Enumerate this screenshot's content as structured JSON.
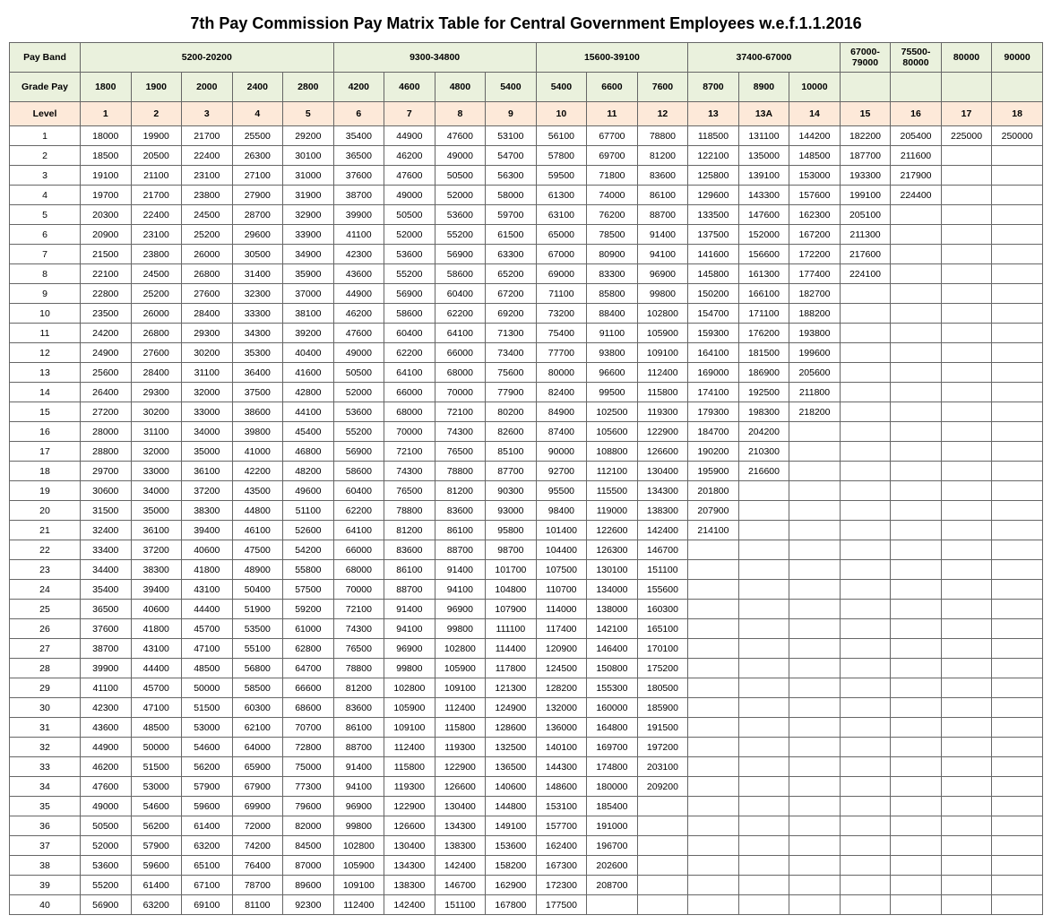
{
  "title": "7th Pay Commission Pay Matrix Table for Central Government Employees w.e.f.1.1.2016",
  "colors": {
    "payband_bg": "#eaf1dd",
    "gradepay_bg": "#eaf1dd",
    "level_bg": "#fde9d9",
    "border": "#666666",
    "background": "#ffffff",
    "text": "#000000"
  },
  "typography": {
    "title_fontsize": 18,
    "title_weight": "bold",
    "cell_fontsize": 10.5,
    "font_family": "Arial"
  },
  "labels": {
    "payband": "Pay Band",
    "gradepay": "Grade Pay",
    "level": "Level"
  },
  "paybands": [
    {
      "label": "5200-20200",
      "span": 5
    },
    {
      "label": "9300-34800",
      "span": 4
    },
    {
      "label": "15600-39100",
      "span": 3
    },
    {
      "label": "37400-67000",
      "span": 3
    },
    {
      "label": "67000-79000",
      "span": 1
    },
    {
      "label": "75500-80000",
      "span": 1
    },
    {
      "label": "80000",
      "span": 1
    },
    {
      "label": "90000",
      "span": 1
    }
  ],
  "gradepay": [
    "1800",
    "1900",
    "2000",
    "2400",
    "2800",
    "4200",
    "4600",
    "4800",
    "5400",
    "5400",
    "6600",
    "7600",
    "8700",
    "8900",
    "10000",
    "",
    "",
    "",
    ""
  ],
  "levels": [
    "1",
    "2",
    "3",
    "4",
    "5",
    "6",
    "7",
    "8",
    "9",
    "10",
    "11",
    "12",
    "13",
    "13A",
    "14",
    "15",
    "16",
    "17",
    "18"
  ],
  "rows": [
    {
      "idx": "1",
      "v": [
        "18000",
        "19900",
        "21700",
        "25500",
        "29200",
        "35400",
        "44900",
        "47600",
        "53100",
        "56100",
        "67700",
        "78800",
        "118500",
        "131100",
        "144200",
        "182200",
        "205400",
        "225000",
        "250000"
      ]
    },
    {
      "idx": "2",
      "v": [
        "18500",
        "20500",
        "22400",
        "26300",
        "30100",
        "36500",
        "46200",
        "49000",
        "54700",
        "57800",
        "69700",
        "81200",
        "122100",
        "135000",
        "148500",
        "187700",
        "211600",
        "",
        ""
      ]
    },
    {
      "idx": "3",
      "v": [
        "19100",
        "21100",
        "23100",
        "27100",
        "31000",
        "37600",
        "47600",
        "50500",
        "56300",
        "59500",
        "71800",
        "83600",
        "125800",
        "139100",
        "153000",
        "193300",
        "217900",
        "",
        ""
      ]
    },
    {
      "idx": "4",
      "v": [
        "19700",
        "21700",
        "23800",
        "27900",
        "31900",
        "38700",
        "49000",
        "52000",
        "58000",
        "61300",
        "74000",
        "86100",
        "129600",
        "143300",
        "157600",
        "199100",
        "224400",
        "",
        ""
      ]
    },
    {
      "idx": "5",
      "v": [
        "20300",
        "22400",
        "24500",
        "28700",
        "32900",
        "39900",
        "50500",
        "53600",
        "59700",
        "63100",
        "76200",
        "88700",
        "133500",
        "147600",
        "162300",
        "205100",
        "",
        "",
        ""
      ]
    },
    {
      "idx": "6",
      "v": [
        "20900",
        "23100",
        "25200",
        "29600",
        "33900",
        "41100",
        "52000",
        "55200",
        "61500",
        "65000",
        "78500",
        "91400",
        "137500",
        "152000",
        "167200",
        "211300",
        "",
        "",
        ""
      ]
    },
    {
      "idx": "7",
      "v": [
        "21500",
        "23800",
        "26000",
        "30500",
        "34900",
        "42300",
        "53600",
        "56900",
        "63300",
        "67000",
        "80900",
        "94100",
        "141600",
        "156600",
        "172200",
        "217600",
        "",
        "",
        ""
      ]
    },
    {
      "idx": "8",
      "v": [
        "22100",
        "24500",
        "26800",
        "31400",
        "35900",
        "43600",
        "55200",
        "58600",
        "65200",
        "69000",
        "83300",
        "96900",
        "145800",
        "161300",
        "177400",
        "224100",
        "",
        "",
        ""
      ]
    },
    {
      "idx": "9",
      "v": [
        "22800",
        "25200",
        "27600",
        "32300",
        "37000",
        "44900",
        "56900",
        "60400",
        "67200",
        "71100",
        "85800",
        "99800",
        "150200",
        "166100",
        "182700",
        "",
        "",
        "",
        ""
      ]
    },
    {
      "idx": "10",
      "v": [
        "23500",
        "26000",
        "28400",
        "33300",
        "38100",
        "46200",
        "58600",
        "62200",
        "69200",
        "73200",
        "88400",
        "102800",
        "154700",
        "171100",
        "188200",
        "",
        "",
        "",
        ""
      ]
    },
    {
      "idx": "11",
      "v": [
        "24200",
        "26800",
        "29300",
        "34300",
        "39200",
        "47600",
        "60400",
        "64100",
        "71300",
        "75400",
        "91100",
        "105900",
        "159300",
        "176200",
        "193800",
        "",
        "",
        "",
        ""
      ]
    },
    {
      "idx": "12",
      "v": [
        "24900",
        "27600",
        "30200",
        "35300",
        "40400",
        "49000",
        "62200",
        "66000",
        "73400",
        "77700",
        "93800",
        "109100",
        "164100",
        "181500",
        "199600",
        "",
        "",
        "",
        ""
      ]
    },
    {
      "idx": "13",
      "v": [
        "25600",
        "28400",
        "31100",
        "36400",
        "41600",
        "50500",
        "64100",
        "68000",
        "75600",
        "80000",
        "96600",
        "112400",
        "169000",
        "186900",
        "205600",
        "",
        "",
        "",
        ""
      ]
    },
    {
      "idx": "14",
      "v": [
        "26400",
        "29300",
        "32000",
        "37500",
        "42800",
        "52000",
        "66000",
        "70000",
        "77900",
        "82400",
        "99500",
        "115800",
        "174100",
        "192500",
        "211800",
        "",
        "",
        "",
        ""
      ]
    },
    {
      "idx": "15",
      "v": [
        "27200",
        "30200",
        "33000",
        "38600",
        "44100",
        "53600",
        "68000",
        "72100",
        "80200",
        "84900",
        "102500",
        "119300",
        "179300",
        "198300",
        "218200",
        "",
        "",
        "",
        ""
      ]
    },
    {
      "idx": "16",
      "v": [
        "28000",
        "31100",
        "34000",
        "39800",
        "45400",
        "55200",
        "70000",
        "74300",
        "82600",
        "87400",
        "105600",
        "122900",
        "184700",
        "204200",
        "",
        "",
        "",
        "",
        ""
      ]
    },
    {
      "idx": "17",
      "v": [
        "28800",
        "32000",
        "35000",
        "41000",
        "46800",
        "56900",
        "72100",
        "76500",
        "85100",
        "90000",
        "108800",
        "126600",
        "190200",
        "210300",
        "",
        "",
        "",
        "",
        ""
      ]
    },
    {
      "idx": "18",
      "v": [
        "29700",
        "33000",
        "36100",
        "42200",
        "48200",
        "58600",
        "74300",
        "78800",
        "87700",
        "92700",
        "112100",
        "130400",
        "195900",
        "216600",
        "",
        "",
        "",
        "",
        ""
      ]
    },
    {
      "idx": "19",
      "v": [
        "30600",
        "34000",
        "37200",
        "43500",
        "49600",
        "60400",
        "76500",
        "81200",
        "90300",
        "95500",
        "115500",
        "134300",
        "201800",
        "",
        "",
        "",
        "",
        "",
        ""
      ]
    },
    {
      "idx": "20",
      "v": [
        "31500",
        "35000",
        "38300",
        "44800",
        "51100",
        "62200",
        "78800",
        "83600",
        "93000",
        "98400",
        "119000",
        "138300",
        "207900",
        "",
        "",
        "",
        "",
        "",
        ""
      ]
    },
    {
      "idx": "21",
      "v": [
        "32400",
        "36100",
        "39400",
        "46100",
        "52600",
        "64100",
        "81200",
        "86100",
        "95800",
        "101400",
        "122600",
        "142400",
        "214100",
        "",
        "",
        "",
        "",
        "",
        ""
      ]
    },
    {
      "idx": "22",
      "v": [
        "33400",
        "37200",
        "40600",
        "47500",
        "54200",
        "66000",
        "83600",
        "88700",
        "98700",
        "104400",
        "126300",
        "146700",
        "",
        "",
        "",
        "",
        "",
        "",
        ""
      ]
    },
    {
      "idx": "23",
      "v": [
        "34400",
        "38300",
        "41800",
        "48900",
        "55800",
        "68000",
        "86100",
        "91400",
        "101700",
        "107500",
        "130100",
        "151100",
        "",
        "",
        "",
        "",
        "",
        "",
        ""
      ]
    },
    {
      "idx": "24",
      "v": [
        "35400",
        "39400",
        "43100",
        "50400",
        "57500",
        "70000",
        "88700",
        "94100",
        "104800",
        "110700",
        "134000",
        "155600",
        "",
        "",
        "",
        "",
        "",
        "",
        ""
      ]
    },
    {
      "idx": "25",
      "v": [
        "36500",
        "40600",
        "44400",
        "51900",
        "59200",
        "72100",
        "91400",
        "96900",
        "107900",
        "114000",
        "138000",
        "160300",
        "",
        "",
        "",
        "",
        "",
        "",
        ""
      ]
    },
    {
      "idx": "26",
      "v": [
        "37600",
        "41800",
        "45700",
        "53500",
        "61000",
        "74300",
        "94100",
        "99800",
        "111100",
        "117400",
        "142100",
        "165100",
        "",
        "",
        "",
        "",
        "",
        "",
        ""
      ]
    },
    {
      "idx": "27",
      "v": [
        "38700",
        "43100",
        "47100",
        "55100",
        "62800",
        "76500",
        "96900",
        "102800",
        "114400",
        "120900",
        "146400",
        "170100",
        "",
        "",
        "",
        "",
        "",
        "",
        ""
      ]
    },
    {
      "idx": "28",
      "v": [
        "39900",
        "44400",
        "48500",
        "56800",
        "64700",
        "78800",
        "99800",
        "105900",
        "117800",
        "124500",
        "150800",
        "175200",
        "",
        "",
        "",
        "",
        "",
        "",
        ""
      ]
    },
    {
      "idx": "29",
      "v": [
        "41100",
        "45700",
        "50000",
        "58500",
        "66600",
        "81200",
        "102800",
        "109100",
        "121300",
        "128200",
        "155300",
        "180500",
        "",
        "",
        "",
        "",
        "",
        "",
        ""
      ]
    },
    {
      "idx": "30",
      "v": [
        "42300",
        "47100",
        "51500",
        "60300",
        "68600",
        "83600",
        "105900",
        "112400",
        "124900",
        "132000",
        "160000",
        "185900",
        "",
        "",
        "",
        "",
        "",
        "",
        ""
      ]
    },
    {
      "idx": "31",
      "v": [
        "43600",
        "48500",
        "53000",
        "62100",
        "70700",
        "86100",
        "109100",
        "115800",
        "128600",
        "136000",
        "164800",
        "191500",
        "",
        "",
        "",
        "",
        "",
        "",
        ""
      ]
    },
    {
      "idx": "32",
      "v": [
        "44900",
        "50000",
        "54600",
        "64000",
        "72800",
        "88700",
        "112400",
        "119300",
        "132500",
        "140100",
        "169700",
        "197200",
        "",
        "",
        "",
        "",
        "",
        "",
        ""
      ]
    },
    {
      "idx": "33",
      "v": [
        "46200",
        "51500",
        "56200",
        "65900",
        "75000",
        "91400",
        "115800",
        "122900",
        "136500",
        "144300",
        "174800",
        "203100",
        "",
        "",
        "",
        "",
        "",
        "",
        ""
      ]
    },
    {
      "idx": "34",
      "v": [
        "47600",
        "53000",
        "57900",
        "67900",
        "77300",
        "94100",
        "119300",
        "126600",
        "140600",
        "148600",
        "180000",
        "209200",
        "",
        "",
        "",
        "",
        "",
        "",
        ""
      ]
    },
    {
      "idx": "35",
      "v": [
        "49000",
        "54600",
        "59600",
        "69900",
        "79600",
        "96900",
        "122900",
        "130400",
        "144800",
        "153100",
        "185400",
        "",
        "",
        "",
        "",
        "",
        "",
        "",
        ""
      ]
    },
    {
      "idx": "36",
      "v": [
        "50500",
        "56200",
        "61400",
        "72000",
        "82000",
        "99800",
        "126600",
        "134300",
        "149100",
        "157700",
        "191000",
        "",
        "",
        "",
        "",
        "",
        "",
        "",
        ""
      ]
    },
    {
      "idx": "37",
      "v": [
        "52000",
        "57900",
        "63200",
        "74200",
        "84500",
        "102800",
        "130400",
        "138300",
        "153600",
        "162400",
        "196700",
        "",
        "",
        "",
        "",
        "",
        "",
        "",
        ""
      ]
    },
    {
      "idx": "38",
      "v": [
        "53600",
        "59600",
        "65100",
        "76400",
        "87000",
        "105900",
        "134300",
        "142400",
        "158200",
        "167300",
        "202600",
        "",
        "",
        "",
        "",
        "",
        "",
        "",
        ""
      ]
    },
    {
      "idx": "39",
      "v": [
        "55200",
        "61400",
        "67100",
        "78700",
        "89600",
        "109100",
        "138300",
        "146700",
        "162900",
        "172300",
        "208700",
        "",
        "",
        "",
        "",
        "",
        "",
        "",
        ""
      ]
    },
    {
      "idx": "40",
      "v": [
        "56900",
        "63200",
        "69100",
        "81100",
        "92300",
        "112400",
        "142400",
        "151100",
        "167800",
        "177500",
        "",
        "",
        "",
        "",
        "",
        "",
        "",
        "",
        ""
      ]
    }
  ]
}
